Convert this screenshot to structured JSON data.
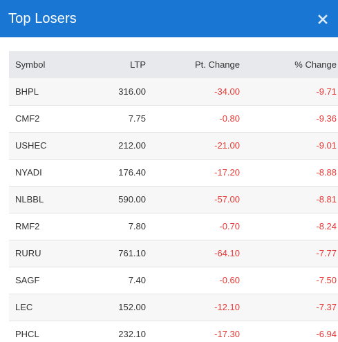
{
  "header": {
    "title": "Top Losers",
    "close_icon": "close-icon",
    "background": "#1976d2"
  },
  "table": {
    "columns": [
      "Symbol",
      "LTP",
      "Pt. Change",
      "% Change"
    ],
    "rows": [
      {
        "symbol": "BHPL",
        "ltp": "316.00",
        "pt_change": "-34.00",
        "pct_change": "-9.71"
      },
      {
        "symbol": "CMF2",
        "ltp": "7.75",
        "pt_change": "-0.80",
        "pct_change": "-9.36"
      },
      {
        "symbol": "USHEC",
        "ltp": "212.00",
        "pt_change": "-21.00",
        "pct_change": "-9.01"
      },
      {
        "symbol": "NYADI",
        "ltp": "176.40",
        "pt_change": "-17.20",
        "pct_change": "-8.88"
      },
      {
        "symbol": "NLBBL",
        "ltp": "590.00",
        "pt_change": "-57.00",
        "pct_change": "-8.81"
      },
      {
        "symbol": "RMF2",
        "ltp": "7.80",
        "pt_change": "-0.70",
        "pct_change": "-8.24"
      },
      {
        "symbol": "RURU",
        "ltp": "761.10",
        "pt_change": "-64.10",
        "pct_change": "-7.77"
      },
      {
        "symbol": "SAGF",
        "ltp": "7.40",
        "pt_change": "-0.60",
        "pct_change": "-7.50"
      },
      {
        "symbol": "LEC",
        "ltp": "152.00",
        "pt_change": "-12.10",
        "pct_change": "-7.37"
      },
      {
        "symbol": "PHCL",
        "ltp": "232.10",
        "pt_change": "-17.30",
        "pct_change": "-6.94"
      }
    ],
    "negative_color": "#e53935"
  }
}
